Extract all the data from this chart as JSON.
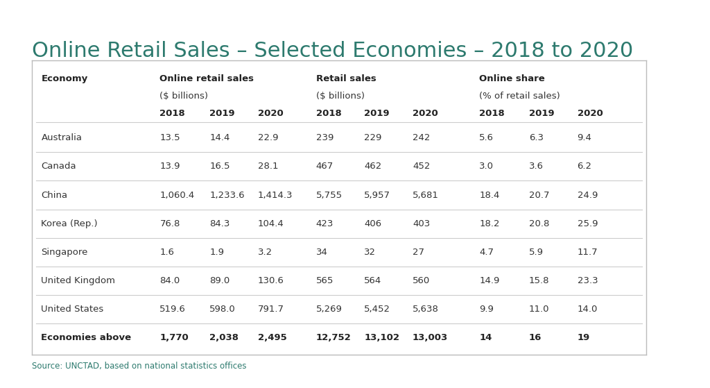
{
  "title": "Online Retail Sales – Selected Economies – 2018 to 2020",
  "title_color": "#2d7a6e",
  "title_fontsize": 22,
  "background_color": "#ffffff",
  "table_border_color": "#bbbbbb",
  "source_text": "Source: UNCTAD, based on national statistics offices",
  "source_color": "#2d7a6e",
  "rows": [
    {
      "economy": "Australia",
      "online_sales": [
        "13.5",
        "14.4",
        "22.9"
      ],
      "retail_sales": [
        "239",
        "229",
        "242"
      ],
      "online_share": [
        "5.6",
        "6.3",
        "9.4"
      ],
      "bold": false
    },
    {
      "economy": "Canada",
      "online_sales": [
        "13.9",
        "16.5",
        "28.1"
      ],
      "retail_sales": [
        "467",
        "462",
        "452"
      ],
      "online_share": [
        "3.0",
        "3.6",
        "6.2"
      ],
      "bold": false
    },
    {
      "economy": "China",
      "online_sales": [
        "1,060.4",
        "1,233.6",
        "1,414.3"
      ],
      "retail_sales": [
        "5,755",
        "5,957",
        "5,681"
      ],
      "online_share": [
        "18.4",
        "20.7",
        "24.9"
      ],
      "bold": false
    },
    {
      "economy": "Korea (Rep.)",
      "online_sales": [
        "76.8",
        "84.3",
        "104.4"
      ],
      "retail_sales": [
        "423",
        "406",
        "403"
      ],
      "online_share": [
        "18.2",
        "20.8",
        "25.9"
      ],
      "bold": false
    },
    {
      "economy": "Singapore",
      "online_sales": [
        "1.6",
        "1.9",
        "3.2"
      ],
      "retail_sales": [
        "34",
        "32",
        "27"
      ],
      "online_share": [
        "4.7",
        "5.9",
        "11.7"
      ],
      "bold": false
    },
    {
      "economy": "United Kingdom",
      "online_sales": [
        "84.0",
        "89.0",
        "130.6"
      ],
      "retail_sales": [
        "565",
        "564",
        "560"
      ],
      "online_share": [
        "14.9",
        "15.8",
        "23.3"
      ],
      "bold": false
    },
    {
      "economy": "United States",
      "online_sales": [
        "519.6",
        "598.0",
        "791.7"
      ],
      "retail_sales": [
        "5,269",
        "5,452",
        "5,638"
      ],
      "online_share": [
        "9.9",
        "11.0",
        "14.0"
      ],
      "bold": false
    },
    {
      "economy": "Economies above",
      "online_sales": [
        "1,770",
        "2,038",
        "2,495"
      ],
      "retail_sales": [
        "12,752",
        "13,102",
        "13,003"
      ],
      "online_share": [
        "14",
        "16",
        "19"
      ],
      "bold": true
    }
  ],
  "divider_color": "#cccccc",
  "text_color": "#333333",
  "fs": 9.5
}
